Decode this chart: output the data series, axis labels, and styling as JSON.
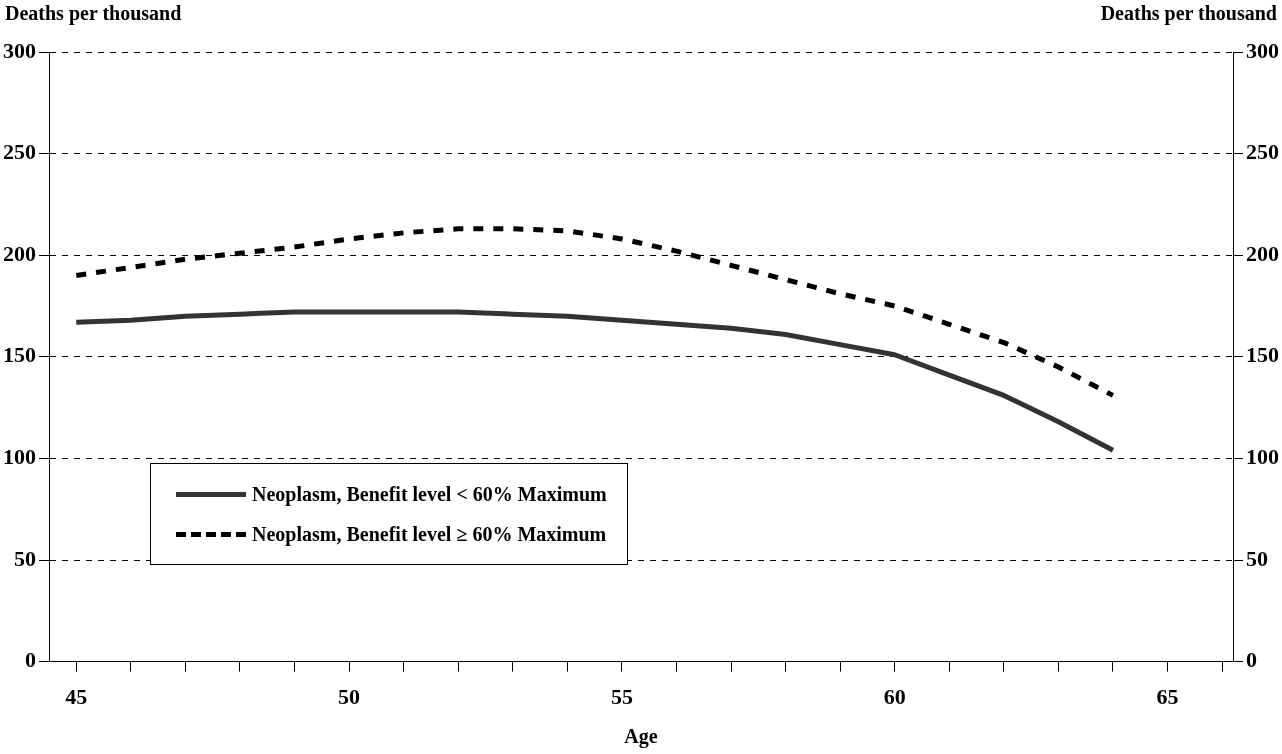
{
  "chart_data": {
    "type": "line",
    "xlabel": "Age",
    "ylabel": "Deaths per thousand",
    "y2label": "Deaths per thousand",
    "x": [
      45,
      46,
      47,
      48,
      49,
      50,
      51,
      52,
      53,
      54,
      55,
      56,
      57,
      58,
      59,
      60,
      61,
      62,
      63,
      64
    ],
    "xlim": [
      44.5,
      66.2
    ],
    "xticks": [
      45,
      {
        "value": 46,
        "label": null
      },
      {
        "value": 47,
        "label": null
      },
      {
        "value": 48,
        "label": null
      },
      {
        "value": 49,
        "label": null
      },
      50,
      {
        "value": 51,
        "label": null
      },
      {
        "value": 52,
        "label": null
      },
      {
        "value": 53,
        "label": null
      },
      {
        "value": 54,
        "label": null
      },
      55,
      {
        "value": 56,
        "label": null
      },
      {
        "value": 57,
        "label": null
      },
      {
        "value": 58,
        "label": null
      },
      {
        "value": 59,
        "label": null
      },
      60,
      {
        "value": 61,
        "label": null
      },
      {
        "value": 62,
        "label": null
      },
      {
        "value": 63,
        "label": null
      },
      {
        "value": 64,
        "label": null
      },
      65,
      {
        "value": 66,
        "label": null
      }
    ],
    "ylim": [
      0,
      300
    ],
    "yticks": [
      0,
      50,
      100,
      150,
      200,
      250,
      300
    ],
    "y2lim": [
      0,
      300
    ],
    "y2ticks": [
      0,
      50,
      100,
      150,
      200,
      250,
      300
    ],
    "grid": "y",
    "legend": "bottom left",
    "marker": "none",
    "series": [
      {
        "name": "Neoplasm, Benefit level < 60% Maximum",
        "color": "#333333",
        "line_style": "solid",
        "values": [
          167,
          168,
          170,
          171,
          172,
          172,
          172,
          172,
          171,
          170,
          168,
          166,
          164,
          161,
          156,
          151,
          141,
          131,
          118,
          104
        ]
      },
      {
        "name": "Neoplasm, Benefit level ≥ 60% Maximum",
        "color": "#000000",
        "line_style": "dashed",
        "values": [
          190,
          194,
          198,
          201,
          204,
          208,
          211,
          213,
          213,
          212,
          208,
          202,
          195,
          188,
          181,
          175,
          166,
          157,
          145,
          131
        ]
      }
    ]
  }
}
